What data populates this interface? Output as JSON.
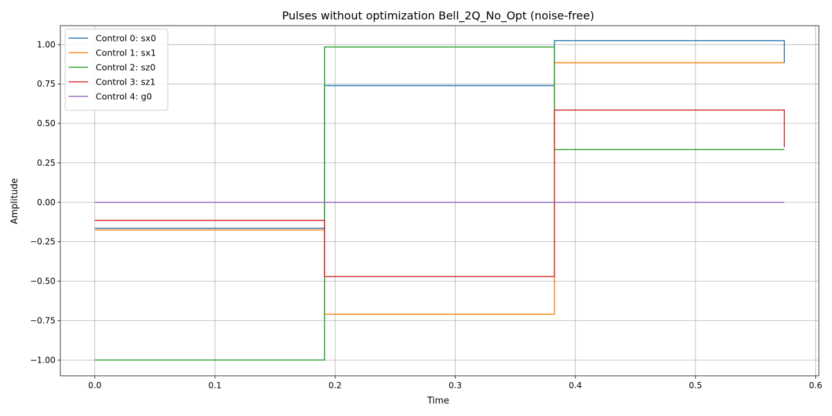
{
  "chart_data": {
    "type": "line",
    "step": "post",
    "title": "Pulses without optimization Bell_2Q_No_Opt (noise-free)",
    "xlabel": "Time",
    "ylabel": "Amplitude",
    "xlim": [
      -0.0287,
      0.6027
    ],
    "ylim": [
      -1.1,
      1.12
    ],
    "xticks": [
      0.0,
      0.1,
      0.2,
      0.3,
      0.4,
      0.5,
      0.6
    ],
    "xtick_labels": [
      "0.0",
      "0.1",
      "0.2",
      "0.3",
      "0.4",
      "0.5",
      "0.6"
    ],
    "yticks": [
      -1.0,
      -0.75,
      -0.5,
      -0.25,
      0.0,
      0.25,
      0.5,
      0.75,
      1.0
    ],
    "ytick_labels": [
      "−1.00",
      "−0.75",
      "−0.50",
      "−0.25",
      "0.00",
      "0.25",
      "0.50",
      "0.75",
      "1.00"
    ],
    "grid": true,
    "legend_position": "top-left",
    "x": [
      0.0,
      0.1913,
      0.3826,
      0.574
    ],
    "series": [
      {
        "name": "Control 0: sx0",
        "color": "#1f77b4",
        "values": [
          -0.165,
          0.74,
          1.025,
          0.885
        ]
      },
      {
        "name": "Control 1: sx1",
        "color": "#ff7f0e",
        "values": [
          -0.175,
          -0.71,
          0.885,
          0.885
        ]
      },
      {
        "name": "Control 2: sz0",
        "color": "#2ca02c",
        "values": [
          -1.0,
          0.985,
          0.335,
          0.335
        ]
      },
      {
        "name": "Control 3: sz1",
        "color": "#d62728",
        "values": [
          -0.115,
          -0.47,
          0.585,
          0.35
        ]
      },
      {
        "name": "Control 4: g0",
        "color": "#9467bd",
        "values": [
          0.0,
          0.0,
          0.0,
          0.0
        ]
      }
    ]
  }
}
